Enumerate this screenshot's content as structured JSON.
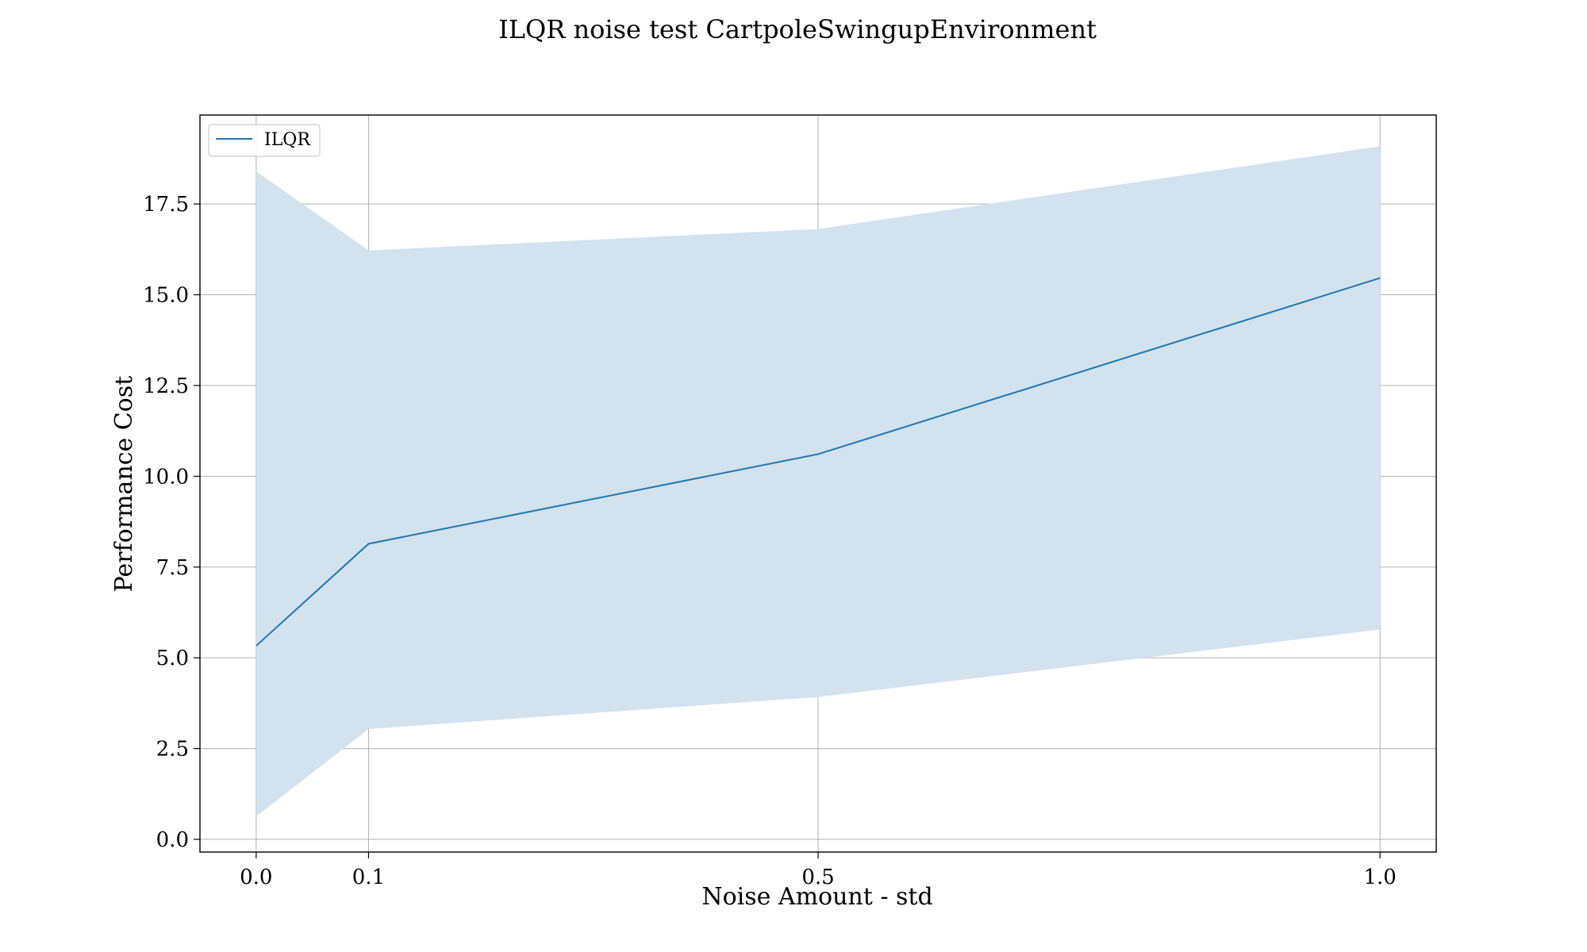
{
  "chart_data": {
    "type": "line",
    "title": "ILQR noise test CartpoleSwingupEnvironment",
    "xlabel": "Noise Amount - std",
    "ylabel": "Performance Cost",
    "x": [
      0.0,
      0.1,
      0.5,
      1.0
    ],
    "xticks": [
      "0.0",
      "0.1",
      "0.5",
      "1.0"
    ],
    "xlim": [
      -0.05,
      1.05
    ],
    "yticks": [
      "0.0",
      "2.5",
      "5.0",
      "7.5",
      "10.0",
      "12.5",
      "15.0",
      "17.5"
    ],
    "ylim": [
      -0.35,
      19.95
    ],
    "grid": true,
    "legend_position": "upper left",
    "series": [
      {
        "name": "ILQR",
        "color": "#1f77b4",
        "y": [
          5.33,
          8.14,
          10.61,
          15.46
        ],
        "band_upper": [
          18.4,
          16.22,
          16.81,
          19.09
        ],
        "band_lower": [
          0.63,
          3.04,
          3.92,
          5.78
        ],
        "band_color": "#d2e2ef"
      }
    ]
  }
}
